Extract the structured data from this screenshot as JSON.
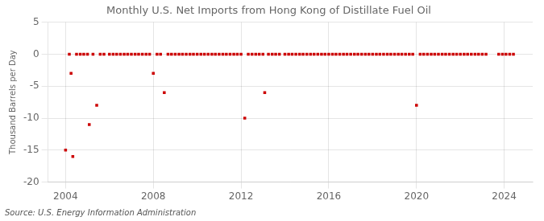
{
  "chart_data": {
    "type": "scatter",
    "title": "Monthly U.S. Net Imports from Hong Kong of Distillate Fuel Oil",
    "ylabel": "Thousand Barrels per Day",
    "annotations": [
      "Source: U.S. Energy Information Administration"
    ],
    "x": [
      2004.0,
      2004.17,
      2004.25,
      2004.33,
      2004.5,
      2004.67,
      2004.83,
      2005.0,
      2005.08,
      2005.25,
      2005.42,
      2005.58,
      2005.75,
      2006.0,
      2006.17,
      2006.33,
      2006.5,
      2006.67,
      2006.83,
      2007.0,
      2007.17,
      2007.33,
      2007.5,
      2007.67,
      2007.83,
      2008.0,
      2008.17,
      2008.33,
      2008.5,
      2008.67,
      2008.83,
      2009.0,
      2009.17,
      2009.33,
      2009.5,
      2009.67,
      2009.83,
      2010.0,
      2010.17,
      2010.33,
      2010.5,
      2010.67,
      2010.83,
      2011.0,
      2011.17,
      2011.33,
      2011.5,
      2011.67,
      2011.83,
      2012.0,
      2012.17,
      2012.33,
      2012.5,
      2012.67,
      2012.83,
      2013.0,
      2013.08,
      2013.25,
      2013.42,
      2013.58,
      2013.75,
      2014.0,
      2014.17,
      2014.33,
      2014.5,
      2014.67,
      2014.83,
      2015.0,
      2015.17,
      2015.33,
      2015.5,
      2015.67,
      2015.83,
      2016.0,
      2016.17,
      2016.33,
      2016.5,
      2016.67,
      2016.83,
      2017.0,
      2017.17,
      2017.33,
      2017.5,
      2017.67,
      2017.83,
      2018.0,
      2018.17,
      2018.33,
      2018.5,
      2018.67,
      2018.83,
      2019.0,
      2019.17,
      2019.33,
      2019.5,
      2019.67,
      2019.83,
      2020.0,
      2020.17,
      2020.33,
      2020.5,
      2020.67,
      2020.83,
      2021.0,
      2021.17,
      2021.33,
      2021.5,
      2021.67,
      2021.83,
      2022.0,
      2022.17,
      2022.33,
      2022.5,
      2022.67,
      2022.83,
      2023.0,
      2023.17,
      2023.75,
      2023.92,
      2024.08,
      2024.25,
      2024.42
    ],
    "values": [
      -15,
      0,
      -3,
      -16,
      0,
      0,
      0,
      0,
      -11,
      0,
      -8,
      0,
      0,
      0,
      0,
      0,
      0,
      0,
      0,
      0,
      0,
      0,
      0,
      0,
      0,
      -3,
      0,
      0,
      -6,
      0,
      0,
      0,
      0,
      0,
      0,
      0,
      0,
      0,
      0,
      0,
      0,
      0,
      0,
      0,
      0,
      0,
      0,
      0,
      0,
      0,
      -10,
      0,
      0,
      0,
      0,
      0,
      -6,
      0,
      0,
      0,
      0,
      0,
      0,
      0,
      0,
      0,
      0,
      0,
      0,
      0,
      0,
      0,
      0,
      0,
      0,
      0,
      0,
      0,
      0,
      0,
      0,
      0,
      0,
      0,
      0,
      0,
      0,
      0,
      0,
      0,
      0,
      0,
      0,
      0,
      0,
      0,
      0,
      -8,
      0,
      0,
      0,
      0,
      0,
      0,
      0,
      0,
      0,
      0,
      0,
      0,
      0,
      0,
      0,
      0,
      0,
      0,
      0,
      0,
      0,
      0,
      0,
      0
    ],
    "color": "#cc0000",
    "marker": "square",
    "xlim": [
      2003.2,
      2025.3
    ],
    "xticks": [
      2004,
      2008,
      2012,
      2016,
      2020,
      2024
    ],
    "ylim": [
      -20,
      5
    ],
    "yticks": [
      -20,
      -15,
      -10,
      -5,
      0,
      5
    ],
    "grid": true
  }
}
